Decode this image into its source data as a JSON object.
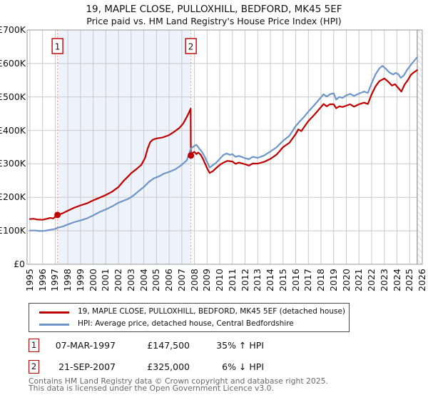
{
  "title": {
    "line1": "19, MAPLE CLOSE, PULLOXHILL, BEDFORD, MK45 5EF",
    "line2": "Price paid vs. HM Land Registry's House Price Index (HPI)"
  },
  "chart_data": {
    "type": "line",
    "x_axis": {
      "min": 1994.78,
      "max": 2026,
      "tick_labels": [
        "1995",
        "1996",
        "1997",
        "1998",
        "1999",
        "2000",
        "2001",
        "2002",
        "2003",
        "2004",
        "2005",
        "2006",
        "2007",
        "2008",
        "2009",
        "2010",
        "2011",
        "2012",
        "2013",
        "2014",
        "2015",
        "2016",
        "2017",
        "2018",
        "2019",
        "2020",
        "2021",
        "2022",
        "2023",
        "2024",
        "2025",
        "2026"
      ]
    },
    "y_axis": {
      "min": 0,
      "max": 700000,
      "tick_step": 100000,
      "tick_labels": [
        "£700K",
        "£600K",
        "£500K",
        "£400K",
        "£300K",
        "£200K",
        "£100K",
        "£0"
      ]
    },
    "grid": true,
    "legend_position": "bottom",
    "series": [
      {
        "name": "19, MAPLE CLOSE, PULLOXHILL, BEDFORD, MK45 5EF (detached house)",
        "color": "#c00000",
        "points": [
          [
            1995.0,
            135000
          ],
          [
            1995.3,
            136000
          ],
          [
            1995.6,
            133500
          ],
          [
            1996.0,
            133000
          ],
          [
            1996.3,
            135500
          ],
          [
            1996.6,
            138500
          ],
          [
            1996.85,
            137000
          ],
          [
            1997.18,
            147500
          ],
          [
            1997.5,
            151000
          ],
          [
            1998.0,
            160000
          ],
          [
            1998.5,
            169000
          ],
          [
            1999.0,
            176000
          ],
          [
            1999.5,
            182000
          ],
          [
            2000.0,
            191000
          ],
          [
            2000.5,
            199000
          ],
          [
            2001.0,
            207000
          ],
          [
            2001.5,
            217000
          ],
          [
            2002.0,
            231000
          ],
          [
            2002.4,
            249000
          ],
          [
            2002.8,
            264000
          ],
          [
            2003.0,
            272000
          ],
          [
            2003.4,
            284000
          ],
          [
            2003.8,
            297000
          ],
          [
            2004.1,
            318000
          ],
          [
            2004.3,
            345000
          ],
          [
            2004.5,
            365000
          ],
          [
            2004.7,
            372000
          ],
          [
            2005.0,
            376000
          ],
          [
            2005.5,
            379000
          ],
          [
            2006.0,
            386000
          ],
          [
            2006.4,
            396000
          ],
          [
            2006.8,
            407000
          ],
          [
            2007.1,
            420000
          ],
          [
            2007.35,
            437000
          ],
          [
            2007.55,
            452000
          ],
          [
            2007.7,
            465000
          ],
          [
            2007.72,
            325000
          ],
          [
            2007.85,
            333000
          ],
          [
            2008.0,
            336000
          ],
          [
            2008.15,
            329000
          ],
          [
            2008.3,
            334000
          ],
          [
            2008.5,
            327000
          ],
          [
            2008.7,
            313000
          ],
          [
            2009.0,
            287000
          ],
          [
            2009.2,
            273000
          ],
          [
            2009.45,
            278000
          ],
          [
            2009.7,
            287000
          ],
          [
            2010.0,
            297000
          ],
          [
            2010.3,
            304000
          ],
          [
            2010.6,
            309000
          ],
          [
            2011.0,
            307000
          ],
          [
            2011.25,
            300000
          ],
          [
            2011.5,
            304000
          ],
          [
            2012.0,
            299000
          ],
          [
            2012.3,
            295000
          ],
          [
            2012.6,
            301000
          ],
          [
            2013.0,
            301000
          ],
          [
            2013.5,
            306000
          ],
          [
            2014.0,
            315000
          ],
          [
            2014.5,
            328000
          ],
          [
            2015.0,
            350000
          ],
          [
            2015.5,
            363000
          ],
          [
            2016.0,
            389000
          ],
          [
            2016.2,
            403000
          ],
          [
            2016.45,
            398000
          ],
          [
            2016.7,
            412000
          ],
          [
            2017.0,
            428000
          ],
          [
            2017.5,
            448000
          ],
          [
            2018.0,
            470000
          ],
          [
            2018.2,
            479000
          ],
          [
            2018.45,
            472000
          ],
          [
            2018.7,
            478000
          ],
          [
            2019.0,
            478000
          ],
          [
            2019.2,
            466000
          ],
          [
            2019.45,
            472000
          ],
          [
            2019.7,
            470000
          ],
          [
            2020.0,
            474000
          ],
          [
            2020.3,
            478000
          ],
          [
            2020.6,
            471000
          ],
          [
            2021.0,
            478000
          ],
          [
            2021.4,
            483000
          ],
          [
            2021.7,
            479000
          ],
          [
            2022.0,
            508000
          ],
          [
            2022.3,
            531000
          ],
          [
            2022.6,
            547000
          ],
          [
            2023.0,
            555000
          ],
          [
            2023.3,
            546000
          ],
          [
            2023.6,
            534000
          ],
          [
            2023.85,
            538000
          ],
          [
            2024.1,
            527000
          ],
          [
            2024.35,
            516000
          ],
          [
            2024.6,
            537000
          ],
          [
            2024.85,
            550000
          ],
          [
            2025.1,
            566000
          ],
          [
            2025.35,
            574000
          ],
          [
            2025.6,
            580000
          ]
        ]
      },
      {
        "name": "HPI: Average price, detached house, Central Bedfordshire",
        "color": "#6e96c8",
        "points": [
          [
            1995.0,
            101000
          ],
          [
            1995.4,
            101000
          ],
          [
            1995.8,
            99500
          ],
          [
            1996.2,
            100000
          ],
          [
            1996.6,
            103000
          ],
          [
            1997.0,
            105500
          ],
          [
            1997.18,
            109000
          ],
          [
            1997.6,
            113000
          ],
          [
            1998.0,
            119000
          ],
          [
            1998.5,
            126000
          ],
          [
            1999.0,
            131000
          ],
          [
            1999.5,
            137000
          ],
          [
            2000.0,
            146000
          ],
          [
            2000.5,
            156000
          ],
          [
            2001.0,
            164000
          ],
          [
            2001.5,
            173000
          ],
          [
            2002.0,
            184000
          ],
          [
            2002.4,
            190000
          ],
          [
            2002.8,
            196000
          ],
          [
            2003.2,
            206000
          ],
          [
            2003.6,
            219000
          ],
          [
            2004.0,
            231000
          ],
          [
            2004.4,
            246000
          ],
          [
            2004.8,
            257000
          ],
          [
            2005.2,
            263000
          ],
          [
            2005.6,
            271000
          ],
          [
            2006.0,
            276000
          ],
          [
            2006.5,
            284000
          ],
          [
            2007.0,
            297000
          ],
          [
            2007.4,
            311000
          ],
          [
            2007.72,
            346000
          ],
          [
            2008.0,
            354000
          ],
          [
            2008.15,
            357000
          ],
          [
            2008.35,
            347000
          ],
          [
            2008.6,
            336000
          ],
          [
            2008.8,
            322000
          ],
          [
            2009.0,
            306000
          ],
          [
            2009.2,
            289000
          ],
          [
            2009.45,
            296000
          ],
          [
            2009.7,
            303000
          ],
          [
            2010.0,
            315000
          ],
          [
            2010.3,
            327000
          ],
          [
            2010.55,
            331000
          ],
          [
            2010.8,
            327000
          ],
          [
            2011.0,
            329000
          ],
          [
            2011.25,
            321000
          ],
          [
            2011.5,
            324000
          ],
          [
            2012.0,
            317000
          ],
          [
            2012.3,
            314000
          ],
          [
            2012.6,
            321000
          ],
          [
            2013.0,
            318000
          ],
          [
            2013.5,
            325000
          ],
          [
            2014.0,
            337000
          ],
          [
            2014.5,
            350000
          ],
          [
            2015.0,
            369000
          ],
          [
            2015.5,
            384000
          ],
          [
            2016.0,
            413000
          ],
          [
            2016.3,
            426000
          ],
          [
            2016.6,
            438000
          ],
          [
            2017.0,
            456000
          ],
          [
            2017.5,
            477000
          ],
          [
            2018.0,
            499000
          ],
          [
            2018.2,
            508000
          ],
          [
            2018.45,
            501000
          ],
          [
            2018.7,
            508000
          ],
          [
            2019.0,
            511000
          ],
          [
            2019.2,
            492000
          ],
          [
            2019.45,
            500000
          ],
          [
            2019.7,
            497000
          ],
          [
            2020.0,
            505000
          ],
          [
            2020.3,
            509000
          ],
          [
            2020.6,
            503000
          ],
          [
            2021.0,
            510000
          ],
          [
            2021.4,
            516000
          ],
          [
            2021.7,
            512000
          ],
          [
            2022.0,
            541000
          ],
          [
            2022.3,
            567000
          ],
          [
            2022.6,
            585000
          ],
          [
            2022.85,
            593000
          ],
          [
            2023.1,
            585000
          ],
          [
            2023.4,
            573000
          ],
          [
            2023.7,
            567000
          ],
          [
            2023.9,
            572000
          ],
          [
            2024.1,
            568000
          ],
          [
            2024.3,
            557000
          ],
          [
            2024.55,
            565000
          ],
          [
            2024.8,
            581000
          ],
          [
            2025.0,
            591000
          ],
          [
            2025.2,
            601000
          ],
          [
            2025.45,
            612000
          ],
          [
            2025.6,
            619000
          ]
        ]
      }
    ],
    "sales": [
      {
        "label": "1",
        "year": 1997.18,
        "price": 147500,
        "date": "07-MAR-1997",
        "price_display": "£147,500",
        "vs_hpi": "35% ↑ HPI"
      },
      {
        "label": "2",
        "year": 2007.72,
        "price": 325000,
        "date": "21-SEP-2007",
        "price_display": "£325,000",
        "vs_hpi": "6% ↓ HPI"
      }
    ],
    "shaded_region": {
      "from": 1997.18,
      "to": 2007.72,
      "color": "#eef2fa"
    },
    "hatch_region": {
      "from": 2025.6,
      "to": 2026
    },
    "colors": {
      "gridline": "#c9c9c9",
      "plot_border": "#999999",
      "sale_dash": "#ef8a8a",
      "hatch_line": "#b9bfc9",
      "badge_border": "#c00000"
    }
  },
  "footer": {
    "line1": "Contains HM Land Registry data © Crown copyright and database right 2025.",
    "line2": "This data is licensed under the Open Government Licence v3.0."
  }
}
